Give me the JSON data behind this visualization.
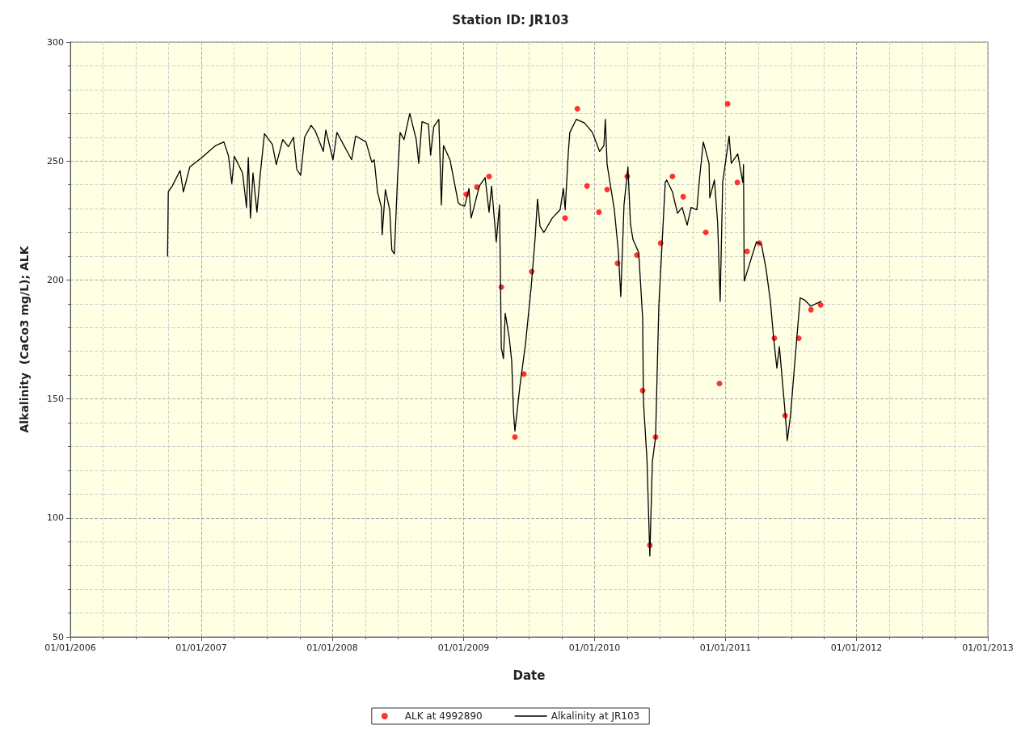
{
  "chart_data": {
    "type": "line",
    "title": "Station ID: JR103",
    "xlabel": "Date",
    "ylabel": "Alkalinity  (CaCo3 mg/L); ALK",
    "xlim": [
      "2006-01-01",
      "2013-01-01"
    ],
    "xticks": [
      {
        "value": "2006-01-01",
        "label": "01/01/2006"
      },
      {
        "value": "2007-01-01",
        "label": "01/01/2007"
      },
      {
        "value": "2008-01-01",
        "label": "01/01/2008"
      },
      {
        "value": "2009-01-01",
        "label": "01/01/2009"
      },
      {
        "value": "2010-01-01",
        "label": "01/01/2010"
      },
      {
        "value": "2011-01-01",
        "label": "01/01/2011"
      },
      {
        "value": "2012-01-01",
        "label": "01/01/2012"
      },
      {
        "value": "2013-01-01",
        "label": "01/01/2013"
      }
    ],
    "ylim": [
      50,
      300
    ],
    "yticks": [
      50,
      100,
      150,
      200,
      250,
      300
    ],
    "grid": true,
    "legend": "bottom",
    "series": [
      {
        "name": "ALK at 4992890",
        "type": "scatter",
        "marker": "circle",
        "color": "#ff0000",
        "x": [
          "2009-01-09",
          "2009-02-07",
          "2009-03-13",
          "2009-04-16",
          "2009-05-24",
          "2009-06-18",
          "2009-07-10",
          "2009-10-11",
          "2009-11-14",
          "2009-12-11",
          "2010-01-13",
          "2010-02-05",
          "2010-03-06",
          "2010-04-02",
          "2010-04-29",
          "2010-05-15",
          "2010-06-04",
          "2010-06-20",
          "2010-07-04",
          "2010-08-06",
          "2010-09-05",
          "2010-11-07",
          "2010-12-15",
          "2011-01-07",
          "2011-02-03",
          "2011-03-02",
          "2011-04-05",
          "2011-05-17",
          "2011-06-16",
          "2011-07-24",
          "2011-08-27",
          "2011-09-23"
        ],
        "values": [
          236,
          239,
          243.5,
          197,
          134,
          160.5,
          203.5,
          226,
          272,
          239.5,
          228.5,
          238,
          207,
          243.5,
          210.5,
          153.5,
          88.5,
          134,
          215.5,
          243.5,
          235,
          220,
          156.5,
          274,
          241,
          212,
          215.5,
          175.5,
          143,
          175.5,
          187.5,
          189.5
        ]
      },
      {
        "name": "Alkalinity at JR103",
        "type": "line",
        "marker": "none",
        "line_style": "solid",
        "color": "#000000",
        "x": [
          "2006-09-29",
          "2006-10-01",
          "2006-10-12",
          "2006-11-03",
          "2006-11-12",
          "2006-11-30",
          "2007-01-03",
          "2007-02-10",
          "2007-03-05",
          "2007-03-18",
          "2007-03-27",
          "2007-04-03",
          "2007-04-26",
          "2007-05-07",
          "2007-05-12",
          "2007-05-18",
          "2007-05-25",
          "2007-06-05",
          "2007-06-14",
          "2007-06-26",
          "2007-07-18",
          "2007-07-29",
          "2007-08-16",
          "2007-09-01",
          "2007-09-15",
          "2007-09-24",
          "2007-10-05",
          "2007-10-16",
          "2007-11-03",
          "2007-11-15",
          "2007-12-07",
          "2007-12-14",
          "2008-01-03",
          "2008-01-14",
          "2008-02-24",
          "2008-03-06",
          "2008-04-04",
          "2008-04-20",
          "2008-04-27",
          "2008-05-06",
          "2008-05-17",
          "2008-05-19",
          "2008-05-28",
          "2008-06-09",
          "2008-06-15",
          "2008-06-22",
          "2008-07-01",
          "2008-07-08",
          "2008-07-19",
          "2008-08-04",
          "2008-08-22",
          "2008-08-29",
          "2008-09-07",
          "2008-09-25",
          "2008-10-01",
          "2008-10-10",
          "2008-10-24",
          "2008-10-31",
          "2008-11-06",
          "2008-11-24",
          "2008-12-17",
          "2008-12-24",
          "2009-01-04",
          "2009-01-16",
          "2009-01-22",
          "2009-02-14",
          "2009-03-02",
          "2009-03-13",
          "2009-03-20",
          "2009-04-02",
          "2009-04-11",
          "2009-04-13",
          "2009-04-16",
          "2009-04-22",
          "2009-04-27",
          "2009-05-08",
          "2009-05-15",
          "2009-05-20",
          "2009-05-24",
          "2009-06-07",
          "2009-06-22",
          "2009-07-08",
          "2009-07-19",
          "2009-07-26",
          "2009-08-02",
          "2009-08-13",
          "2009-09-05",
          "2009-09-27",
          "2009-10-06",
          "2009-10-11",
          "2009-10-20",
          "2009-10-24",
          "2009-11-11",
          "2009-12-04",
          "2009-12-26",
          "2010-01-15",
          "2010-01-27",
          "2010-01-31",
          "2010-02-05",
          "2010-02-25",
          "2010-03-08",
          "2010-03-15",
          "2010-03-24",
          "2010-04-04",
          "2010-04-11",
          "2010-04-18",
          "2010-05-04",
          "2010-05-15",
          "2010-05-17",
          "2010-05-27",
          "2010-06-04",
          "2010-06-11",
          "2010-06-20",
          "2010-06-29",
          "2010-07-08",
          "2010-07-17",
          "2010-07-21",
          "2010-08-06",
          "2010-08-20",
          "2010-09-02",
          "2010-09-16",
          "2010-09-27",
          "2010-10-13",
          "2010-10-20",
          "2010-10-31",
          "2010-11-16",
          "2010-11-18",
          "2010-12-01",
          "2010-12-10",
          "2010-12-17",
          "2010-12-24",
          "2011-01-11",
          "2011-01-17",
          "2011-02-04",
          "2011-02-18",
          "2011-02-20",
          "2011-02-22",
          "2011-03-28",
          "2011-04-11",
          "2011-04-24",
          "2011-05-06",
          "2011-05-15",
          "2011-05-24",
          "2011-05-31",
          "2011-06-15",
          "2011-06-22",
          "2011-07-01",
          "2011-07-15",
          "2011-07-28",
          "2011-08-10",
          "2011-08-26",
          "2011-09-24"
        ],
        "values": [
          210,
          237,
          239.5,
          246,
          237,
          247.5,
          251.5,
          256.5,
          258,
          252,
          240.5,
          252,
          245,
          230.5,
          251.5,
          226,
          245,
          228.5,
          244,
          261.5,
          257,
          248.5,
          259,
          256,
          260,
          246.5,
          244,
          260,
          265,
          262.5,
          254,
          263,
          250.5,
          262,
          250.5,
          260.5,
          258,
          249.5,
          250.5,
          237,
          230.5,
          219,
          238,
          229.5,
          212.5,
          211,
          243,
          262,
          259,
          270,
          259,
          249,
          266.5,
          265.5,
          252.5,
          264.5,
          267.5,
          231.5,
          256.5,
          250.5,
          232.5,
          231.5,
          231,
          238.5,
          226,
          239.5,
          243,
          228.5,
          239.5,
          216,
          231.5,
          210,
          171.5,
          167,
          186,
          176,
          166,
          144.5,
          136.5,
          155.5,
          172.5,
          196.5,
          217,
          234,
          222.5,
          220,
          226,
          229.5,
          238.5,
          229.5,
          254,
          262,
          267.5,
          266,
          262,
          254,
          256.5,
          267.5,
          248.5,
          229.5,
          212.5,
          193,
          231.5,
          247.5,
          223.5,
          217,
          211.5,
          184,
          149.5,
          124.5,
          84,
          123.5,
          134,
          189,
          215,
          241,
          242,
          237,
          228,
          230.5,
          223,
          230.5,
          229.5,
          242,
          258,
          249,
          234.5,
          242,
          224,
          191,
          241,
          260.5,
          249,
          253,
          241,
          248.5,
          199.5,
          216,
          215,
          204.5,
          191,
          175.5,
          163,
          172,
          146,
          132.5,
          143,
          169,
          192.5,
          191.5,
          189,
          191
        ]
      }
    ]
  }
}
